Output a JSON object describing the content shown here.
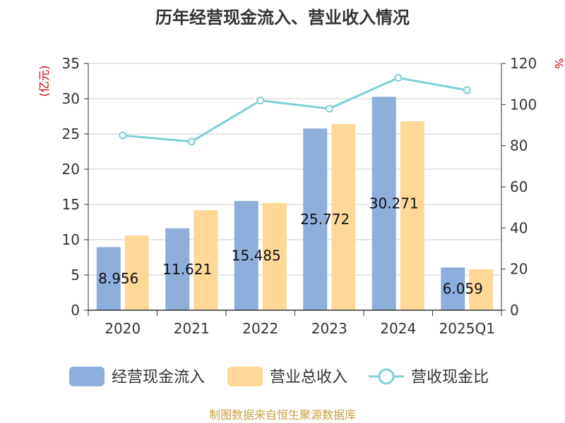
{
  "chart_data": {
    "type": "bar",
    "title": "历年经营现金流入、营业收入情况",
    "categories": [
      "2020",
      "2021",
      "2022",
      "2023",
      "2024",
      "2025Q1"
    ],
    "series": [
      {
        "name": "经营现金流入",
        "axis": "left",
        "kind": "bar",
        "color": "#8eaedc",
        "values": [
          8.956,
          11.621,
          15.485,
          25.772,
          30.271,
          6.059
        ],
        "labels": [
          "8.956",
          "11.621",
          "15.485",
          "25.772",
          "30.271",
          "6.059"
        ]
      },
      {
        "name": "营业总收入",
        "axis": "left",
        "kind": "bar",
        "color": "#ffd898",
        "values": [
          10.6,
          14.2,
          15.2,
          26.4,
          26.8,
          5.8
        ]
      },
      {
        "name": "营收现金比",
        "axis": "right",
        "kind": "line",
        "color": "#7fd0d4",
        "values": [
          85,
          82,
          102,
          98,
          113,
          107
        ]
      }
    ],
    "y_left": {
      "unit": "(亿元)",
      "min": 0,
      "max": 35,
      "ticks": [
        0,
        5,
        10,
        15,
        20,
        25,
        30,
        35
      ]
    },
    "y_right": {
      "unit": "%",
      "min": 0,
      "max": 120,
      "ticks": [
        0,
        20,
        40,
        60,
        80,
        100,
        120
      ]
    },
    "grid": true,
    "legend_position": "bottom",
    "source": "制图数据来自恒生聚源数据库"
  }
}
